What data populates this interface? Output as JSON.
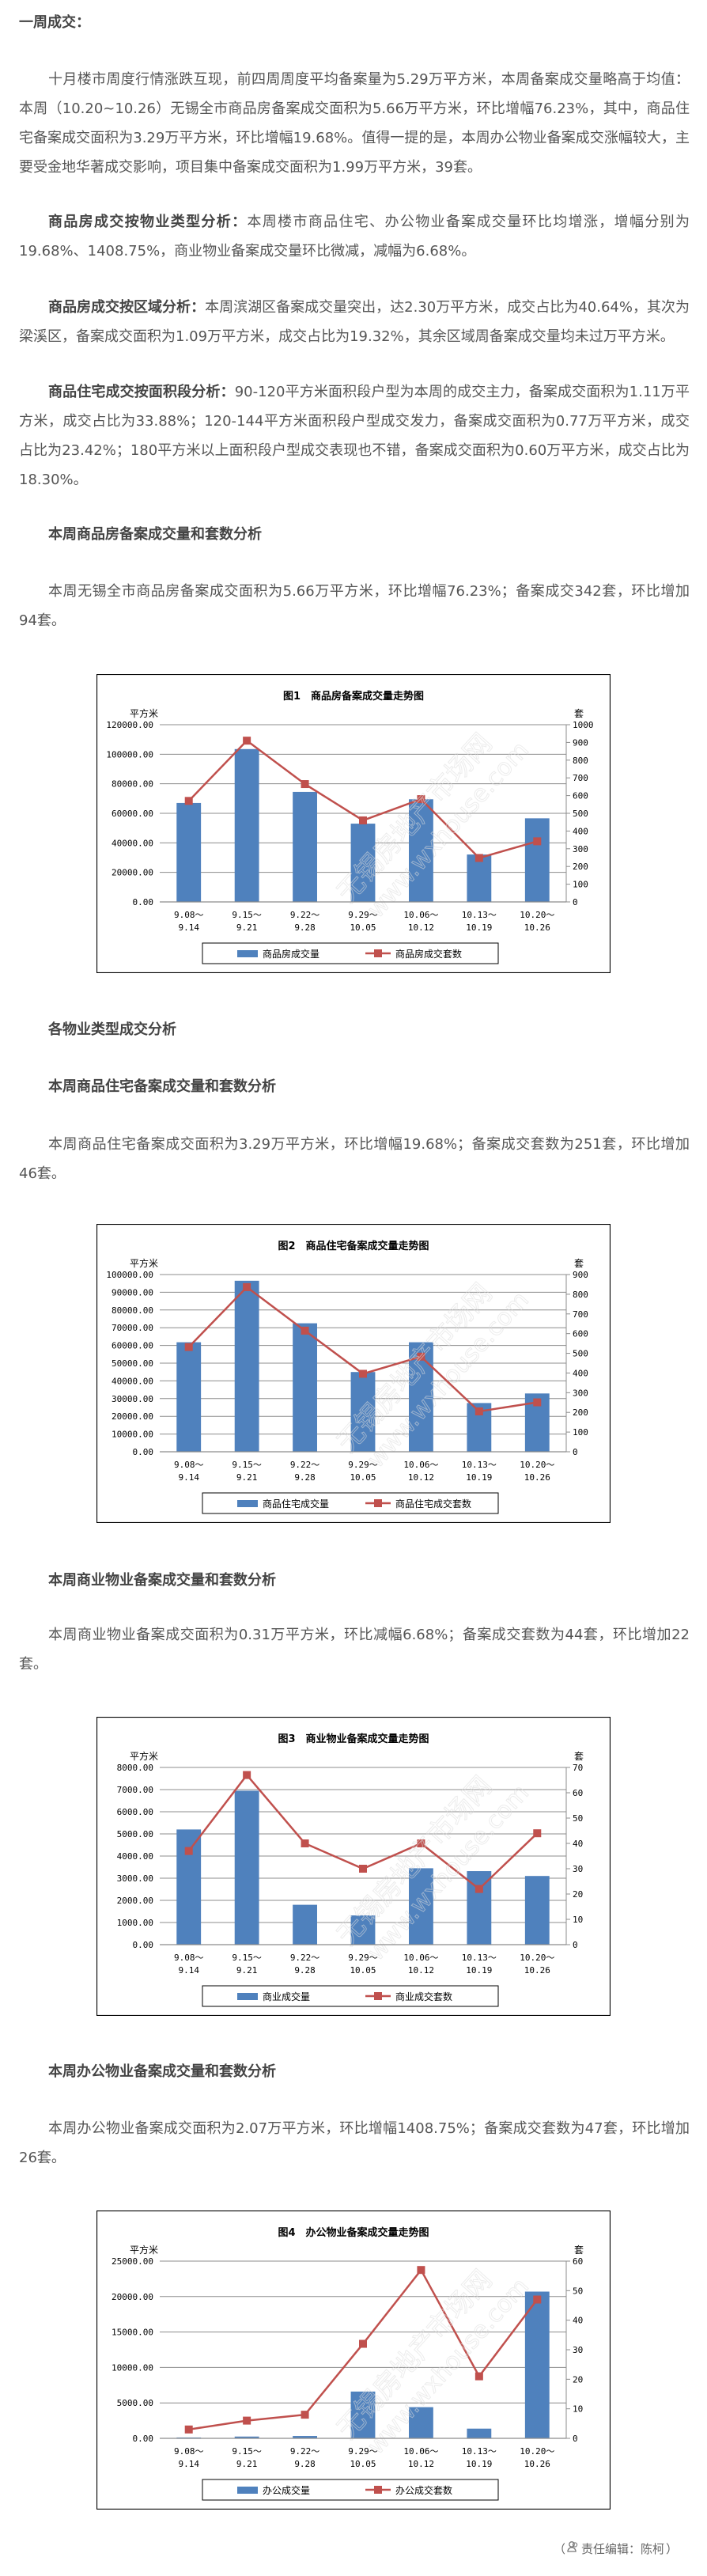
{
  "article": {
    "title": "一周成交：",
    "p1": "十月楼市周度行情涨跌互现，前四周周度平均备案量为5.29万平方米，本周备案成交量略高于均值：本周（10.20~10.26）无锡全市商品房备案成交面积为5.66万平方米，环比增幅76.23%，其中，商品住宅备案成交面积为3.29万平方米，环比增幅19.68%。值得一提的是，本周办公物业备案成交涨幅较大，主要受金地华著成交影响，项目集中备案成交面积为1.99万平方米，39套。",
    "p2_label": "商品房成交按物业类型分析：",
    "p2_text": "本周楼市商品住宅、办公物业备案成交量环比均增涨，增幅分别为19.68%、1408.75%，商业物业备案成交量环比微减，减幅为6.68%。",
    "p3_label": "商品房成交按区域分析：",
    "p3_text": "本周滨湖区备案成交量突出，达2.30万平方米，成交占比为40.64%，其次为梁溪区，备案成交面积为1.09万平方米，成交占比为19.32%，其余区域周备案成交量均未过万平方米。",
    "p4_label": "商品住宅成交按面积段分析：",
    "p4_text": "90-120平方米面积段户型为本周的成交主力，备案成交面积为1.11万平方米，成交占比为33.88%；120-144平方米面积段户型成交发力，备案成交面积为0.77万平方米，成交占比为23.42%；180平方米以上面积段户型成交表现也不错，备案成交面积为0.60万平方米，成交占比为18.30%。",
    "h_total": "本周商品房备案成交量和套数分析",
    "p_total": "本周无锡全市商品房备案成交面积为5.66万平方米，环比增幅76.23%；备案成交342套，环比增加94套。",
    "h_types": "各物业类型成交分析",
    "h_res": "本周商品住宅备案成交量和套数分析",
    "p_res": "本周商品住宅备案成交面积为3.29万平方米，环比增幅19.68%；备案成交套数为251套，环比增加46套。",
    "h_com": "本周商业物业备案成交量和套数分析",
    "p_com": "本周商业物业备案成交面积为0.31万平方米，环比减幅6.68%；备案成交套数为44套，环比增加22套。",
    "h_off": "本周办公物业备案成交量和套数分析",
    "p_off": "本周办公物业备案成交面积为2.07万平方米，环比增幅1408.75%；备案成交套数为47套，环比增加26套。"
  },
  "footer": {
    "open": "（",
    "icon": "editor-person-icon",
    "label": "责任编辑：陈柯",
    "close": "）"
  },
  "watermark": [
    "无锡房地产市场网",
    "www.wxhouse.com"
  ],
  "colors": {
    "bar": "#4F81BD",
    "line": "#C0504D",
    "grid": "#8C8C8C"
  },
  "chart_data": [
    {
      "type": "bar+line",
      "title": "图1　商品房备案成交量走势图",
      "ylabel_left": "平方米",
      "ylabel_right": "套",
      "categories": [
        [
          "9.08～",
          "9.14"
        ],
        [
          "9.15～",
          "9.21"
        ],
        [
          "9.22～",
          "9.28"
        ],
        [
          "9.29～",
          "10.05"
        ],
        [
          "10.06～",
          "10.12"
        ],
        [
          "10.13～",
          "10.19"
        ],
        [
          "10.20～",
          "10.26"
        ]
      ],
      "series": [
        {
          "name": "商品房成交量",
          "type": "bar",
          "axis": "left",
          "values": [
            67000,
            103500,
            74500,
            53000,
            69500,
            32100,
            56600
          ]
        },
        {
          "name": "商品房成交套数",
          "type": "line",
          "axis": "right",
          "values": [
            570,
            910,
            665,
            460,
            580,
            248,
            342
          ]
        }
      ],
      "ylim_left": [
        0,
        120000
      ],
      "ylim_right": [
        0,
        1000
      ],
      "yticks_left": [
        "0.00",
        "20000.00",
        "40000.00",
        "60000.00",
        "80000.00",
        "100000.00",
        "120000.00"
      ],
      "yticks_right": [
        "0",
        "100",
        "200",
        "300",
        "400",
        "500",
        "600",
        "700",
        "800",
        "900",
        "1000"
      ],
      "grid": true,
      "legend": "bottom"
    },
    {
      "type": "bar+line",
      "title": "图2　商品住宅备案成交量走势图",
      "ylabel_left": "平方米",
      "ylabel_right": "套",
      "categories": [
        [
          "9.08～",
          "9.14"
        ],
        [
          "9.15～",
          "9.21"
        ],
        [
          "9.22～",
          "9.28"
        ],
        [
          "9.29～",
          "10.05"
        ],
        [
          "10.06～",
          "10.12"
        ],
        [
          "10.13～",
          "10.19"
        ],
        [
          "10.20～",
          "10.26"
        ]
      ],
      "series": [
        {
          "name": "商品住宅成交量",
          "type": "bar",
          "axis": "left",
          "values": [
            61800,
            96500,
            72500,
            45000,
            61800,
            27500,
            32900
          ]
        },
        {
          "name": "商品住宅成交套数",
          "type": "line",
          "axis": "right",
          "values": [
            532,
            836,
            615,
            396,
            483,
            205,
            251
          ]
        }
      ],
      "ylim_left": [
        0,
        100000
      ],
      "ylim_right": [
        0,
        900
      ],
      "yticks_left": [
        "0.00",
        "10000.00",
        "20000.00",
        "30000.00",
        "40000.00",
        "50000.00",
        "60000.00",
        "70000.00",
        "80000.00",
        "90000.00",
        "100000.00"
      ],
      "yticks_right": [
        "0",
        "100",
        "200",
        "300",
        "400",
        "500",
        "600",
        "700",
        "800",
        "900"
      ],
      "grid": true,
      "legend": "bottom"
    },
    {
      "type": "bar+line",
      "title": "图3　商业物业备案成交量走势图",
      "ylabel_left": "平方米",
      "ylabel_right": "套",
      "categories": [
        [
          "9.08～",
          "9.14"
        ],
        [
          "9.15～",
          "9.21"
        ],
        [
          "9.22～",
          "9.28"
        ],
        [
          "9.29～",
          "10.05"
        ],
        [
          "10.06～",
          "10.12"
        ],
        [
          "10.13～",
          "10.19"
        ],
        [
          "10.20～",
          "10.26"
        ]
      ],
      "series": [
        {
          "name": "商业成交量",
          "type": "bar",
          "axis": "left",
          "values": [
            5200,
            6950,
            1800,
            1320,
            3450,
            3320,
            3100
          ]
        },
        {
          "name": "商业成交套数",
          "type": "line",
          "axis": "right",
          "values": [
            37,
            67,
            40,
            30,
            40,
            22,
            44
          ]
        }
      ],
      "ylim_left": [
        0,
        8000
      ],
      "ylim_right": [
        0,
        70
      ],
      "yticks_left": [
        "0.00",
        "1000.00",
        "2000.00",
        "3000.00",
        "4000.00",
        "5000.00",
        "6000.00",
        "7000.00",
        "8000.00"
      ],
      "yticks_right": [
        "0",
        "10",
        "20",
        "30",
        "40",
        "50",
        "60",
        "70"
      ],
      "grid": true,
      "legend": "bottom"
    },
    {
      "type": "bar+line",
      "title": "图4　办公物业备案成交量走势图",
      "ylabel_left": "平方米",
      "ylabel_right": "套",
      "categories": [
        [
          "9.08～",
          "9.14"
        ],
        [
          "9.15～",
          "9.21"
        ],
        [
          "9.22～",
          "9.28"
        ],
        [
          "9.29～",
          "10.05"
        ],
        [
          "10.06～",
          "10.12"
        ],
        [
          "10.13～",
          "10.19"
        ],
        [
          "10.20～",
          "10.26"
        ]
      ],
      "series": [
        {
          "name": "办公成交量",
          "type": "bar",
          "axis": "left",
          "values": [
            120,
            250,
            330,
            6600,
            4400,
            1370,
            20700
          ]
        },
        {
          "name": "办公成交套数",
          "type": "line",
          "axis": "right",
          "values": [
            3,
            6,
            8,
            32,
            57,
            21,
            47
          ]
        }
      ],
      "ylim_left": [
        0,
        25000
      ],
      "ylim_right": [
        0,
        60
      ],
      "yticks_left": [
        "0.00",
        "5000.00",
        "10000.00",
        "15000.00",
        "20000.00",
        "25000.00"
      ],
      "yticks_right": [
        "0",
        "10",
        "20",
        "30",
        "40",
        "50",
        "60"
      ],
      "grid": true,
      "legend": "bottom"
    }
  ]
}
